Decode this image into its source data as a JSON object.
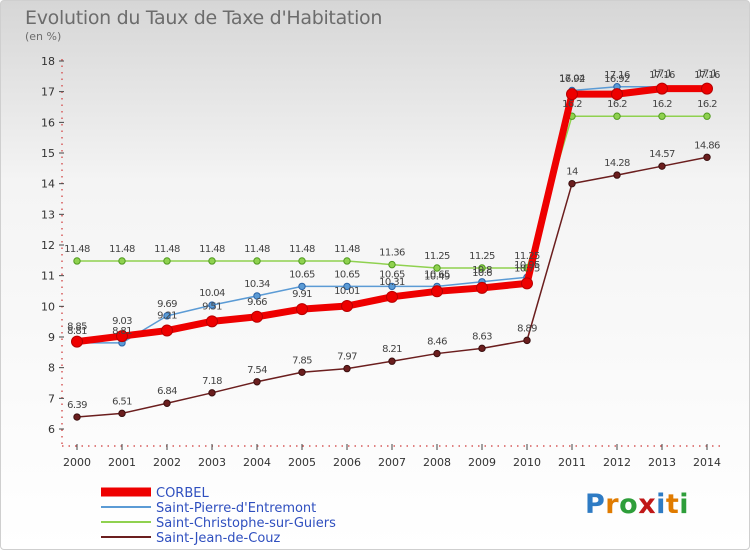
{
  "chart_data": {
    "type": "line",
    "title": "Evolution du Taux de Taxe d'Habitation",
    "unit_label": "(en %)",
    "xlabel": "",
    "ylabel": "",
    "x": [
      2000,
      2001,
      2002,
      2003,
      2004,
      2005,
      2006,
      2007,
      2008,
      2009,
      2010,
      2011,
      2012,
      2013,
      2014
    ],
    "yticks": [
      6,
      7,
      8,
      9,
      10,
      11,
      12,
      13,
      14,
      15,
      16,
      17,
      18
    ],
    "ylim": [
      6,
      18
    ],
    "grid": false,
    "legend_position": "bottom-left",
    "series": [
      {
        "name": "CORBEL",
        "color": "#ee0000",
        "values": [
          8.85,
          9.03,
          9.21,
          9.51,
          9.66,
          9.91,
          10.01,
          10.31,
          10.49,
          10.6,
          10.75,
          16.92,
          16.92,
          17.1,
          17.1
        ],
        "labels": [
          "8.85",
          "9.03",
          "9.21",
          "9.51",
          "9.66",
          "9.91",
          "10.01",
          "10.31",
          "10.49",
          "10.6",
          "10.75",
          "16.92",
          "16.92",
          "17.1",
          "17.1"
        ]
      },
      {
        "name": "Saint-Pierre-d'Entremont",
        "color": "#5b9bd5",
        "values": [
          8.81,
          8.81,
          9.69,
          10.04,
          10.34,
          10.65,
          10.65,
          10.65,
          10.65,
          10.8,
          10.95,
          17.04,
          17.16,
          17.16,
          17.16
        ],
        "labels": [
          "8.81",
          "8.81",
          "9.69",
          "10.04",
          "10.34",
          "10.65",
          "10.65",
          "10.65",
          "10.65",
          "10.8",
          "10.95",
          "17.04",
          "17.16",
          "17.16",
          "17.16"
        ]
      },
      {
        "name": "Saint-Christophe-sur-Guiers",
        "color": "#8fd14f",
        "values": [
          11.48,
          11.48,
          11.48,
          11.48,
          11.48,
          11.48,
          11.48,
          11.36,
          11.25,
          11.25,
          11.25,
          16.2,
          16.2,
          16.2,
          16.2
        ],
        "labels": [
          "11.48",
          "11.48",
          "11.48",
          "11.48",
          "11.48",
          "11.48",
          "11.48",
          "11.36",
          "11.25",
          "11.25",
          "11.25",
          "16.2",
          "16.2",
          "16.2",
          "16.2"
        ]
      },
      {
        "name": "Saint-Jean-de-Couz",
        "color": "#6b1e1e",
        "values": [
          6.39,
          6.51,
          6.84,
          7.18,
          7.54,
          7.85,
          7.97,
          8.21,
          8.46,
          8.63,
          8.89,
          14.0,
          14.28,
          14.57,
          14.86
        ],
        "labels": [
          "6.39",
          "6.51",
          "6.84",
          "7.18",
          "7.54",
          "7.85",
          "7.97",
          "8.21",
          "8.46",
          "8.63",
          "8.89",
          "14",
          "14.28",
          "14.57",
          "14.86"
        ]
      }
    ]
  },
  "logo_text": "Proxiti",
  "logo_colors": [
    "#2e7bc4",
    "#e07b00",
    "#2e9e3a",
    "#c01818",
    "#2e7bc4",
    "#e07b00",
    "#2e9e3a"
  ]
}
